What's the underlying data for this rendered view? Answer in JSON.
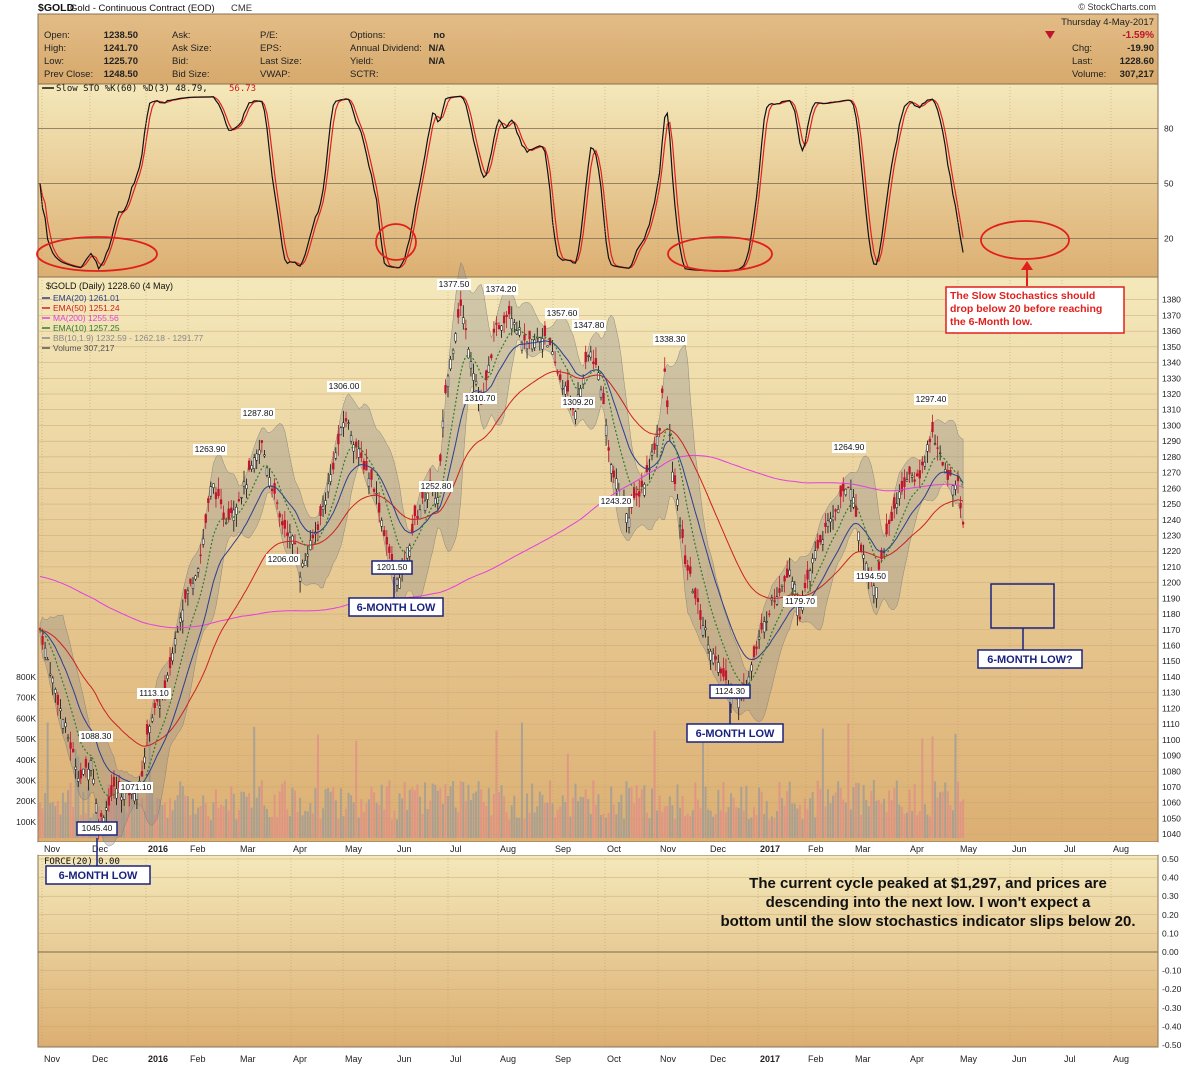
{
  "header": {
    "symbol": "$GOLD",
    "name": "Gold - Continuous Contract (EOD)",
    "exchange": "CME",
    "source": "© StockCharts.com",
    "date": "Thursday  4-May-2017",
    "change_pct": "-1.59%",
    "chg_label": "Chg:",
    "chg": "-19.90",
    "last_label": "Last:",
    "last": "1228.60",
    "volume_label": "Volume:",
    "volume": "307,217",
    "col1": [
      {
        "label": "Open:",
        "value": "1238.50"
      },
      {
        "label": "High:",
        "value": "1241.70"
      },
      {
        "label": "Low:",
        "value": "1225.70"
      },
      {
        "label": "Prev Close:",
        "value": "1248.50"
      }
    ],
    "col2": [
      "Ask:",
      "Ask Size:",
      "Bid:",
      "Bid Size:"
    ],
    "col3": [
      "P/E:",
      "EPS:",
      "Last Size:",
      "VWAP:"
    ],
    "col4": [
      {
        "label": "Options:",
        "value": "no"
      },
      {
        "label": "Annual Dividend:",
        "value": "N/A"
      },
      {
        "label": "Yield:",
        "value": "N/A"
      },
      {
        "label": "SCTR:",
        "value": ""
      }
    ]
  },
  "sto": {
    "label": "Slow STO %K(60) %D(3) 48.79,",
    "label2": "56.73",
    "levels": [
      "80",
      "50",
      "20"
    ]
  },
  "legend": {
    "title": "$GOLD (Daily) 1228.60 (4 May)",
    "items": [
      {
        "text": "EMA(20) 1261.01",
        "color": "#2b3f8f"
      },
      {
        "text": "EMA(50) 1251.24",
        "color": "#cc2222"
      },
      {
        "text": "MA(200) 1255.56",
        "color": "#e040e0"
      },
      {
        "text": "EMA(10) 1257.25",
        "color": "#2e7d2e"
      },
      {
        "text": "BB(10,1.9) 1232.59 - 1262.18 - 1291.77",
        "color": "#888888"
      },
      {
        "text": "Volume 307,217",
        "color": "#555555"
      }
    ]
  },
  "force": {
    "label": "FORCE(20) 0.00",
    "levels": [
      "0.50",
      "0.40",
      "0.30",
      "0.20",
      "0.10",
      "0.00",
      "-0.10",
      "-0.20",
      "-0.30",
      "-0.40",
      "-0.50"
    ]
  },
  "price_axis": [
    "1380",
    "1370",
    "1360",
    "1350",
    "1340",
    "1330",
    "1320",
    "1310",
    "1300",
    "1290",
    "1280",
    "1270",
    "1260",
    "1250",
    "1240",
    "1230",
    "1220",
    "1210",
    "1200",
    "1190",
    "1180",
    "1170",
    "1160",
    "1150",
    "1140",
    "1130",
    "1120",
    "1110",
    "1100",
    "1090",
    "1080",
    "1070",
    "1060",
    "1050",
    "1040"
  ],
  "volume_axis": [
    "800K",
    "700K",
    "600K",
    "500K",
    "400K",
    "300K",
    "200K",
    "100K"
  ],
  "months": [
    "Nov",
    "Dec",
    "2016",
    "Feb",
    "Mar",
    "Apr",
    "May",
    "Jun",
    "Jul",
    "Aug",
    "Sep",
    "Oct",
    "Nov",
    "Dec",
    "2017",
    "Feb",
    "Mar",
    "Apr",
    "May",
    "Jun",
    "Jul",
    "Aug"
  ],
  "annotations": {
    "stoch_note": "The Slow Stochastics should drop below 20 before reaching the 6-Month low.",
    "cycle_note": "The current cycle peaked at $1,297, and prices are descending into the next low. I won't expect a bottom until the slow stochastics indicator slips below 20.",
    "low_label": "6-MONTH LOW",
    "low_q": "6-MONTH LOW?"
  },
  "colors": {
    "panel_top": "#f3e6b6",
    "panel_bottom": "#d9aa6c",
    "up": "#111111",
    "down": "#c0142c",
    "accent": "#e0201c",
    "box": "#1a237e"
  },
  "chart_data": {
    "type": "candlestick",
    "title": "$GOLD Gold - Continuous Contract (EOD)",
    "x_range": [
      "Nov 2015",
      "Aug 2017"
    ],
    "ylim": [
      1035,
      1390
    ],
    "labeled_points": [
      {
        "x": "Dec 2015",
        "price": 1045.4
      },
      {
        "x": "Dec 2015",
        "price": 1088.3
      },
      {
        "x": "Jan 2016",
        "price": 1071.1
      },
      {
        "x": "Jan 2016",
        "price": 1113.1
      },
      {
        "x": "Feb 2016",
        "price": 1263.9
      },
      {
        "x": "Mar 2016",
        "price": 1287.8
      },
      {
        "x": "Apr 2016",
        "price": 1206.0
      },
      {
        "x": "May 2016",
        "price": 1306.0
      },
      {
        "x": "Jun 2016",
        "price": 1201.5
      },
      {
        "x": "Jun 2016",
        "price": 1252.8
      },
      {
        "x": "Jul 2016",
        "price": 1377.5
      },
      {
        "x": "Jul 2016",
        "price": 1310.7
      },
      {
        "x": "Aug 2016",
        "price": 1374.2
      },
      {
        "x": "Aug 2016",
        "price": 1357.6
      },
      {
        "x": "Sep 2016",
        "price": 1347.8
      },
      {
        "x": "Sep 2016",
        "price": 1309.2
      },
      {
        "x": "Oct 2016",
        "price": 1243.2
      },
      {
        "x": "Nov 2016",
        "price": 1338.3
      },
      {
        "x": "Dec 2016",
        "price": 1124.3
      },
      {
        "x": "Feb 2017",
        "price": 1179.7
      },
      {
        "x": "Feb 2017",
        "price": 1264.9
      },
      {
        "x": "Mar 2017",
        "price": 1194.5
      },
      {
        "x": "Apr 2017",
        "price": 1297.4
      }
    ]
  }
}
